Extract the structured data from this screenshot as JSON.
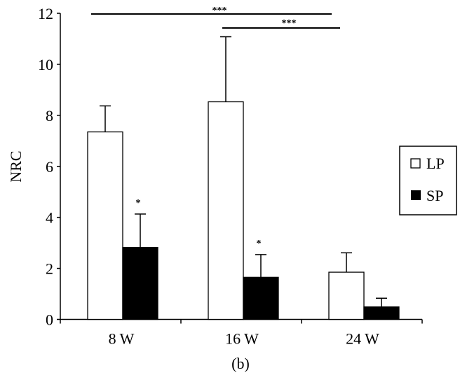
{
  "chart_data": {
    "type": "bar",
    "title": "",
    "caption": "(b)",
    "xlabel": "",
    "ylabel": "NRC",
    "ylim": [
      0,
      12
    ],
    "yticks": [
      0,
      2,
      4,
      6,
      8,
      10,
      12
    ],
    "categories": [
      "8 W",
      "16 W",
      "24 W"
    ],
    "grid": false,
    "legend_position": "right",
    "series": [
      {
        "name": "LP",
        "color": "#ffffff",
        "values": [
          7.35,
          8.53,
          1.85
        ],
        "error": [
          1.02,
          2.55,
          0.76
        ],
        "annotations": [
          "",
          "",
          ""
        ]
      },
      {
        "name": "SP",
        "color": "#000000",
        "values": [
          2.82,
          1.65,
          0.49
        ],
        "error": [
          1.31,
          0.89,
          0.34
        ],
        "annotations": [
          "*",
          "*",
          ""
        ]
      }
    ],
    "significance": [
      {
        "from": "8 W LP",
        "to": "24 W LP",
        "label": "***"
      },
      {
        "from": "16 W LP",
        "to": "24 W SP",
        "label": "***"
      }
    ]
  }
}
